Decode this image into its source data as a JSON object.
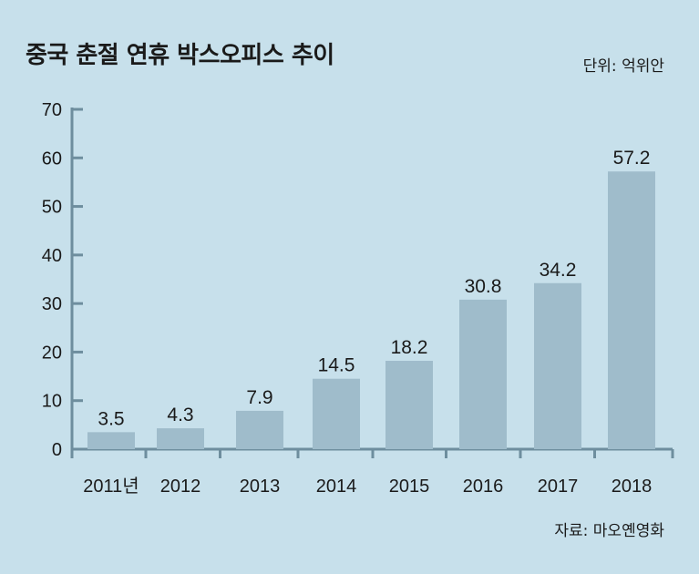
{
  "chart_data": {
    "type": "bar",
    "title": "중국 춘절 연휴 박스오피스 추이",
    "unit_label": "단위: 억위안",
    "source": "자료: 마오옌영화",
    "categories": [
      "2011년",
      "2012",
      "2013",
      "2014",
      "2015",
      "2016",
      "2017",
      "2018"
    ],
    "values": [
      3.5,
      4.3,
      7.9,
      14.5,
      18.2,
      30.8,
      34.2,
      57.2
    ],
    "value_labels": [
      "3.5",
      "4.3",
      "7.9",
      "14.5",
      "18.2",
      "30.8",
      "34.2",
      "57.2"
    ],
    "yticks": [
      "0",
      "10",
      "20",
      "30",
      "40",
      "50",
      "60",
      "70"
    ],
    "ylim": [
      0,
      70
    ],
    "grid": false,
    "legend": "none",
    "colors": {
      "background": "#c7e0eb",
      "bar": "#9fbccb",
      "axis": "#6e8e9e",
      "text": "#1a1a1a"
    }
  }
}
